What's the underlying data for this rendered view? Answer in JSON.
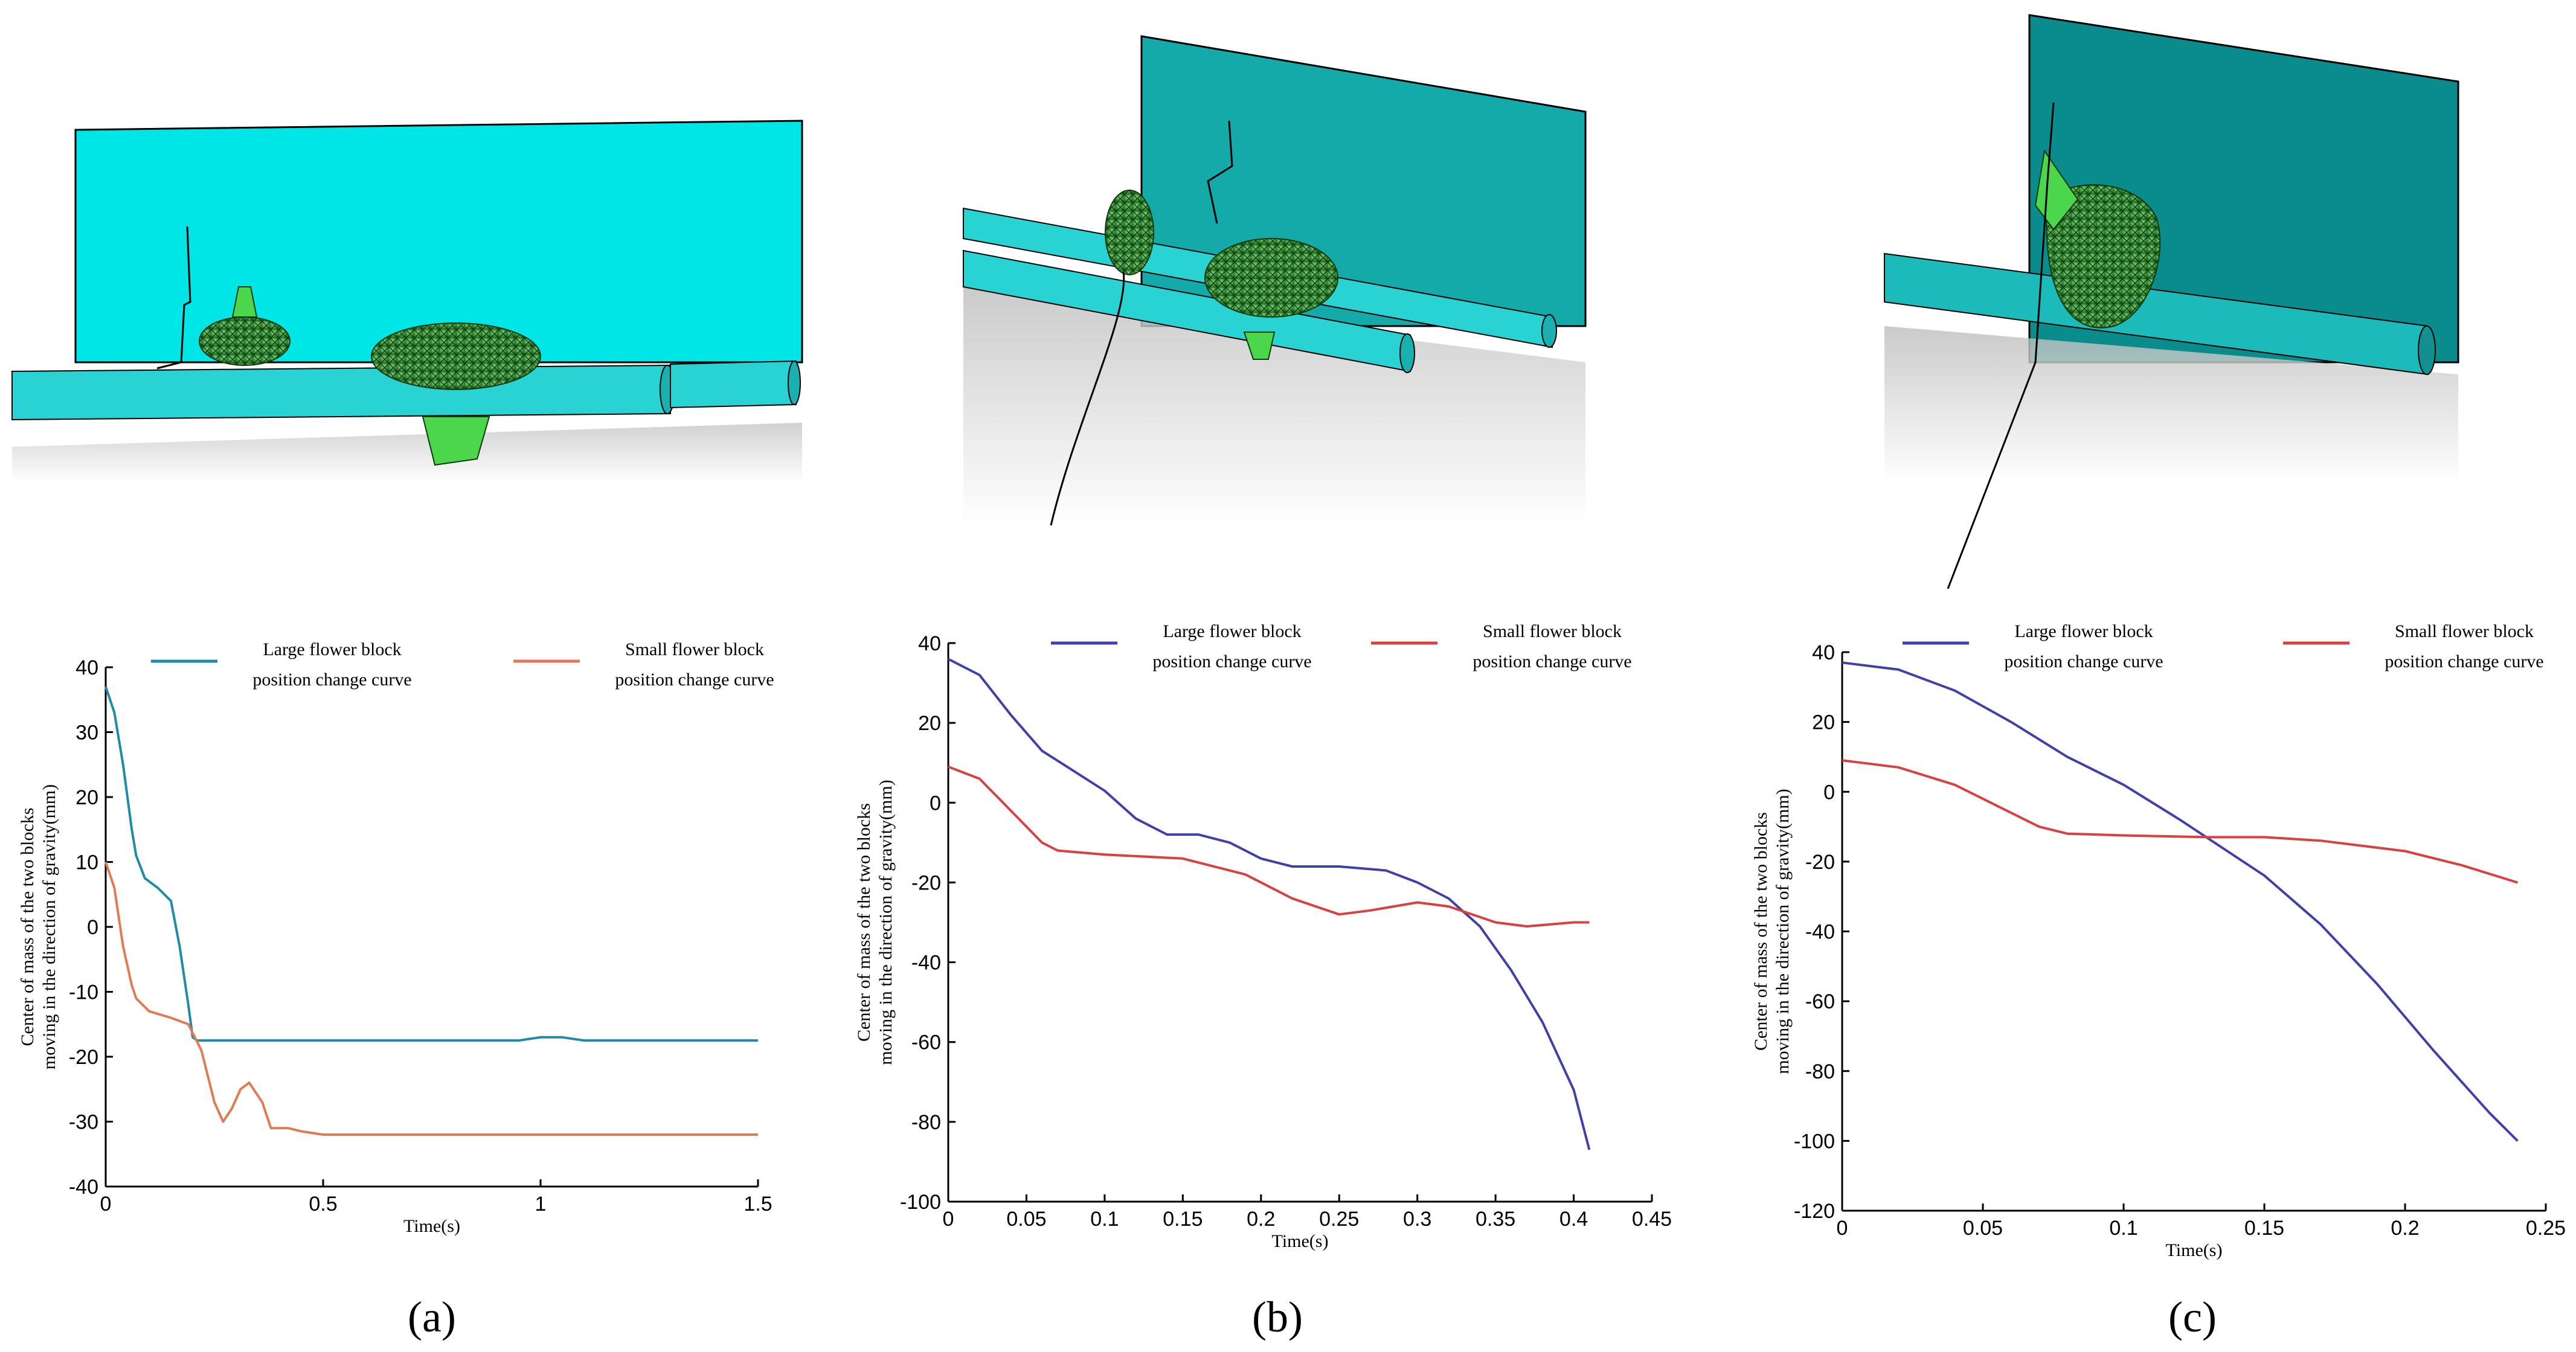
{
  "panel_labels": [
    "(a)",
    "(b)",
    "(c)"
  ],
  "chart_data": [
    {
      "type": "line",
      "panel": "a",
      "xlabel": "Time(s)",
      "ylabel_lines": [
        "Center of mass of the two blocks",
        "moving in the direction of gravity(mm)"
      ],
      "xlim": [
        0,
        1.5
      ],
      "ylim": [
        -40,
        40
      ],
      "xticks": [
        0,
        0.5,
        1,
        1.5
      ],
      "xtick_labels": [
        "0",
        "0.5",
        "1",
        "1.5"
      ],
      "yticks": [
        -40,
        -30,
        -20,
        -10,
        0,
        10,
        20,
        30,
        40
      ],
      "ytick_labels": [
        "-40",
        "-30",
        "-20",
        "-10",
        "0",
        "10",
        "20",
        "30",
        "40"
      ],
      "series": [
        {
          "name": "Large flower block position change curve",
          "legend_lines": [
            "Large flower block",
            "position change curve"
          ],
          "color": "#1f8ba8",
          "x": [
            0,
            0.02,
            0.04,
            0.06,
            0.07,
            0.09,
            0.12,
            0.15,
            0.17,
            0.19,
            0.2,
            0.21,
            0.25,
            0.4,
            0.6,
            0.9,
            0.95,
            1.0,
            1.05,
            1.1,
            1.3,
            1.5
          ],
          "y": [
            37,
            33,
            25,
            15,
            11,
            7.5,
            6,
            4,
            -3,
            -12,
            -17,
            -17.5,
            -17.5,
            -17.5,
            -17.5,
            -17.5,
            -17.5,
            -17,
            -17,
            -17.5,
            -17.5,
            -17.5
          ]
        },
        {
          "name": "Small flower block position change curve",
          "legend_lines": [
            "Small flower block",
            "position change curve"
          ],
          "color": "#e07b54",
          "x": [
            0,
            0.02,
            0.04,
            0.06,
            0.07,
            0.1,
            0.15,
            0.19,
            0.22,
            0.25,
            0.27,
            0.29,
            0.31,
            0.33,
            0.36,
            0.38,
            0.4,
            0.42,
            0.45,
            0.5,
            0.7,
            1.0,
            1.5
          ],
          "y": [
            10,
            6,
            -3,
            -9,
            -11,
            -13,
            -14,
            -15,
            -19,
            -27,
            -30,
            -28,
            -25,
            -24,
            -27,
            -31,
            -31,
            -31,
            -31.5,
            -32,
            -32,
            -32,
            -32
          ]
        }
      ]
    },
    {
      "type": "line",
      "panel": "b",
      "xlabel": "Time(s)",
      "ylabel_lines": [
        "Center of mass of the two blocks",
        "moving in the direction of gravity(mm)"
      ],
      "xlim": [
        0,
        0.45
      ],
      "ylim": [
        -100,
        40
      ],
      "xticks": [
        0,
        0.05,
        0.1,
        0.15,
        0.2,
        0.25,
        0.3,
        0.35,
        0.4,
        0.45
      ],
      "xtick_labels": [
        "0",
        "0.05",
        "0.1",
        "0.15",
        "0.2",
        "0.25",
        "0.3",
        "0.35",
        "0.4",
        "0.45"
      ],
      "yticks": [
        -100,
        -80,
        -60,
        -40,
        -20,
        0,
        20,
        40
      ],
      "ytick_labels": [
        "-100",
        "-80",
        "-60",
        "-40",
        "-20",
        "0",
        "20",
        "40"
      ],
      "series": [
        {
          "name": "Large flower block position change curve",
          "legend_lines": [
            "Large flower block",
            "position change curve"
          ],
          "color": "#4040a8",
          "x": [
            0,
            0.02,
            0.04,
            0.06,
            0.08,
            0.1,
            0.12,
            0.14,
            0.16,
            0.18,
            0.2,
            0.22,
            0.25,
            0.28,
            0.3,
            0.32,
            0.34,
            0.36,
            0.38,
            0.4,
            0.41
          ],
          "y": [
            36,
            32,
            22,
            13,
            8,
            3,
            -4,
            -8,
            -8,
            -10,
            -14,
            -16,
            -16,
            -17,
            -20,
            -24,
            -31,
            -42,
            -55,
            -72,
            -87
          ]
        },
        {
          "name": "Small flower block position change curve",
          "legend_lines": [
            "Small flower block",
            "position change curve"
          ],
          "color": "#d94040",
          "x": [
            0,
            0.02,
            0.04,
            0.06,
            0.07,
            0.1,
            0.15,
            0.19,
            0.22,
            0.25,
            0.27,
            0.3,
            0.32,
            0.35,
            0.37,
            0.4,
            0.41
          ],
          "y": [
            9,
            6,
            -2,
            -10,
            -12,
            -13,
            -14,
            -18,
            -24,
            -28,
            -27,
            -25,
            -26,
            -30,
            -31,
            -30,
            -30
          ]
        }
      ]
    },
    {
      "type": "line",
      "panel": "c",
      "xlabel": "Time(s)",
      "ylabel_lines": [
        "Center of mass of the two blocks",
        "moving in the direction of gravity(mm)"
      ],
      "xlim": [
        0,
        0.25
      ],
      "ylim": [
        -120,
        40
      ],
      "xticks": [
        0,
        0.05,
        0.1,
        0.15,
        0.2,
        0.25
      ],
      "xtick_labels": [
        "0",
        "0.05",
        "0.1",
        "0.15",
        "0.2",
        "0.25"
      ],
      "yticks": [
        -120,
        -100,
        -80,
        -60,
        -40,
        -20,
        0,
        20,
        40
      ],
      "ytick_labels": [
        "-120",
        "-100",
        "-80",
        "-60",
        "-40",
        "-20",
        "0",
        "20",
        "40"
      ],
      "series": [
        {
          "name": "Large flower block position change curve",
          "legend_lines": [
            "Large flower block",
            "position change curve"
          ],
          "color": "#4040a8",
          "x": [
            0,
            0.02,
            0.04,
            0.06,
            0.08,
            0.1,
            0.12,
            0.135,
            0.15,
            0.17,
            0.19,
            0.21,
            0.23,
            0.24
          ],
          "y": [
            37,
            35,
            29,
            20,
            10,
            2,
            -8,
            -16,
            -24,
            -38,
            -55,
            -74,
            -92,
            -100
          ]
        },
        {
          "name": "Small flower block position change curve",
          "legend_lines": [
            "Small flower block",
            "position change curve"
          ],
          "color": "#d94040",
          "x": [
            0,
            0.02,
            0.04,
            0.055,
            0.07,
            0.08,
            0.1,
            0.13,
            0.15,
            0.17,
            0.2,
            0.22,
            0.24
          ],
          "y": [
            9,
            7,
            2,
            -4,
            -10,
            -12,
            -12.5,
            -13,
            -13,
            -14,
            -17,
            -21,
            -26
          ]
        }
      ]
    }
  ]
}
